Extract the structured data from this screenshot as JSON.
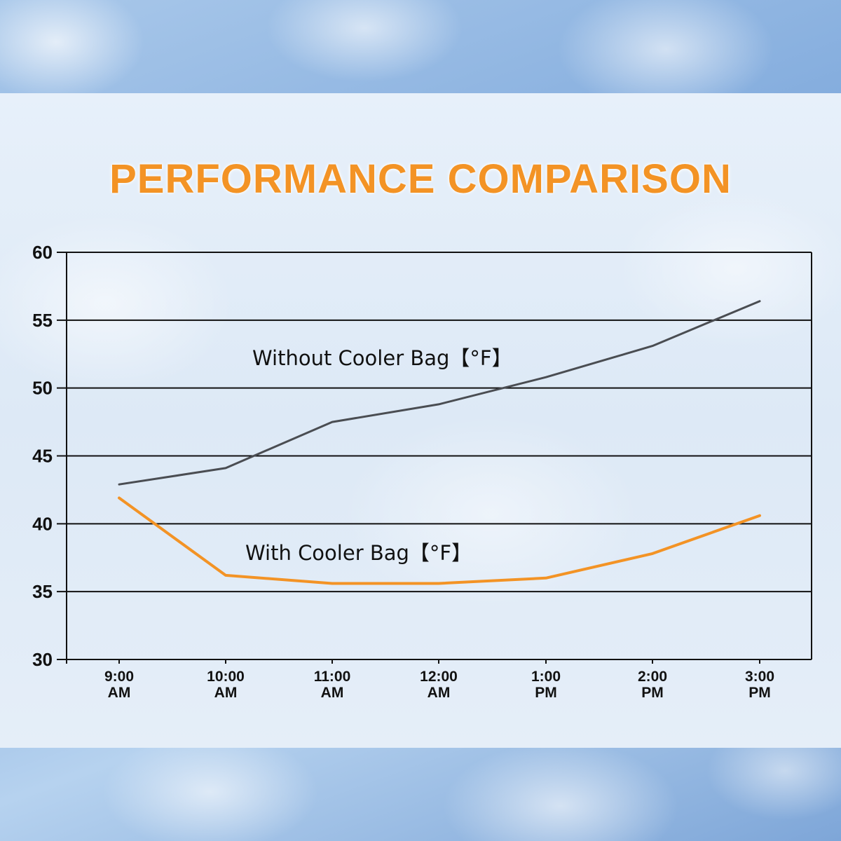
{
  "title": "PERFORMANCE COMPARISON",
  "labels": {
    "without": "Without Cooler Bag【°F】",
    "with": "With Cooler Bag【°F】"
  },
  "colors": {
    "title": "#f39325",
    "with": "#f39325",
    "without": "#4a4d52",
    "grid": "#111111"
  },
  "y_ticks": [
    "60",
    "55",
    "50",
    "45",
    "40",
    "35",
    "30"
  ],
  "x_ticks": [
    {
      "time": "9:00",
      "period": "AM"
    },
    {
      "time": "10:00",
      "period": "AM"
    },
    {
      "time": "11:00",
      "period": "AM"
    },
    {
      "time": "12:00",
      "period": "AM"
    },
    {
      "time": "1:00",
      "period": "PM"
    },
    {
      "time": "2:00",
      "period": "PM"
    },
    {
      "time": "3:00",
      "period": "PM"
    }
  ],
  "chart_data": {
    "type": "line",
    "title": "PERFORMANCE COMPARISON",
    "xlabel": "",
    "ylabel": "",
    "categories": [
      "9:00 AM",
      "10:00 AM",
      "11:00 AM",
      "12:00 AM",
      "1:00 PM",
      "2:00 PM",
      "3:00 PM"
    ],
    "series": [
      {
        "name": "Without Cooler Bag【°F】",
        "color": "#4a4d52",
        "values": [
          42.9,
          44.1,
          47.5,
          48.8,
          50.8,
          53.1,
          56.4
        ]
      },
      {
        "name": "With Cooler Bag【°F】",
        "color": "#f39325",
        "values": [
          41.9,
          36.2,
          35.6,
          35.6,
          36.0,
          37.8,
          40.6
        ]
      }
    ],
    "ylim": [
      30,
      60
    ],
    "yticks": [
      30,
      35,
      40,
      45,
      50,
      55,
      60
    ],
    "grid": "horizontal",
    "legend": "inline labels"
  }
}
